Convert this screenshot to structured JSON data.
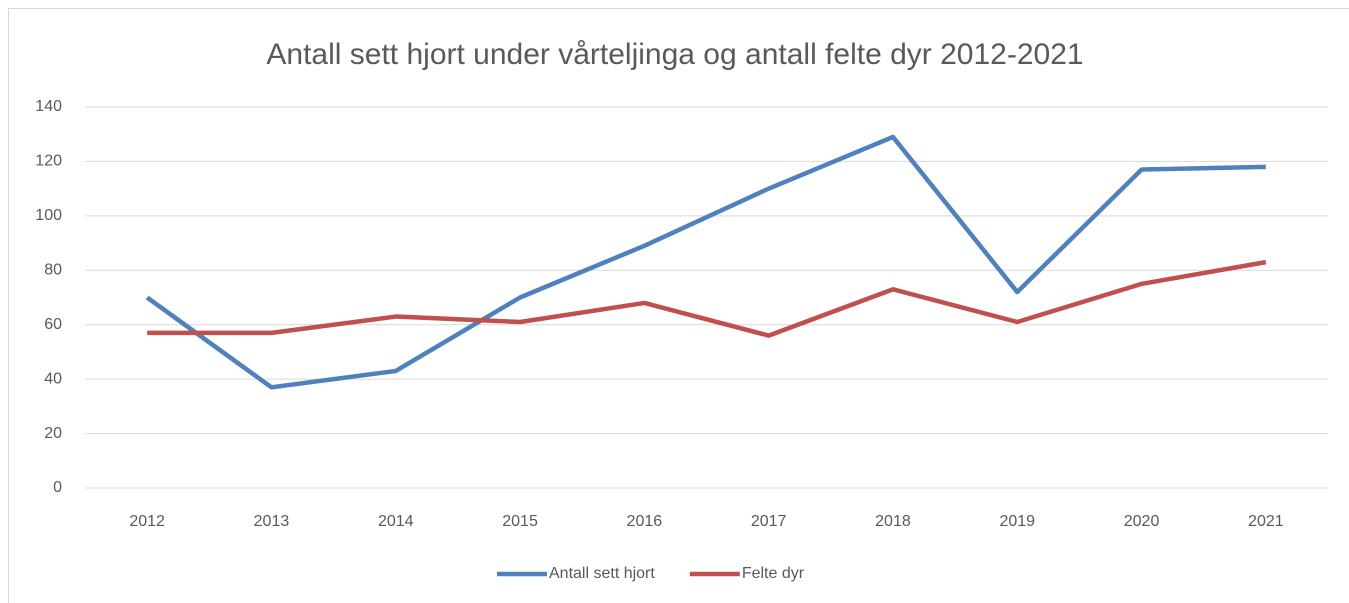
{
  "chart_data": {
    "type": "line",
    "title": "Antall sett hjort under vårteljinga og antall felte dyr 2012-2021",
    "categories": [
      "2012",
      "2013",
      "2014",
      "2015",
      "2016",
      "2017",
      "2018",
      "2019",
      "2020",
      "2021"
    ],
    "series": [
      {
        "name": "Antall sett hjort",
        "color": "#4f81bd",
        "values": [
          70,
          37,
          43,
          70,
          89,
          110,
          129,
          72,
          117,
          118
        ]
      },
      {
        "name": "Felte dyr",
        "color": "#c0504d",
        "values": [
          57,
          57,
          63,
          61,
          68,
          56,
          73,
          61,
          75,
          83
        ]
      }
    ],
    "ylim": [
      0,
      140
    ],
    "yticks": [
      0,
      20,
      40,
      60,
      80,
      100,
      120,
      140
    ],
    "grid": true,
    "legend": "bottom"
  }
}
